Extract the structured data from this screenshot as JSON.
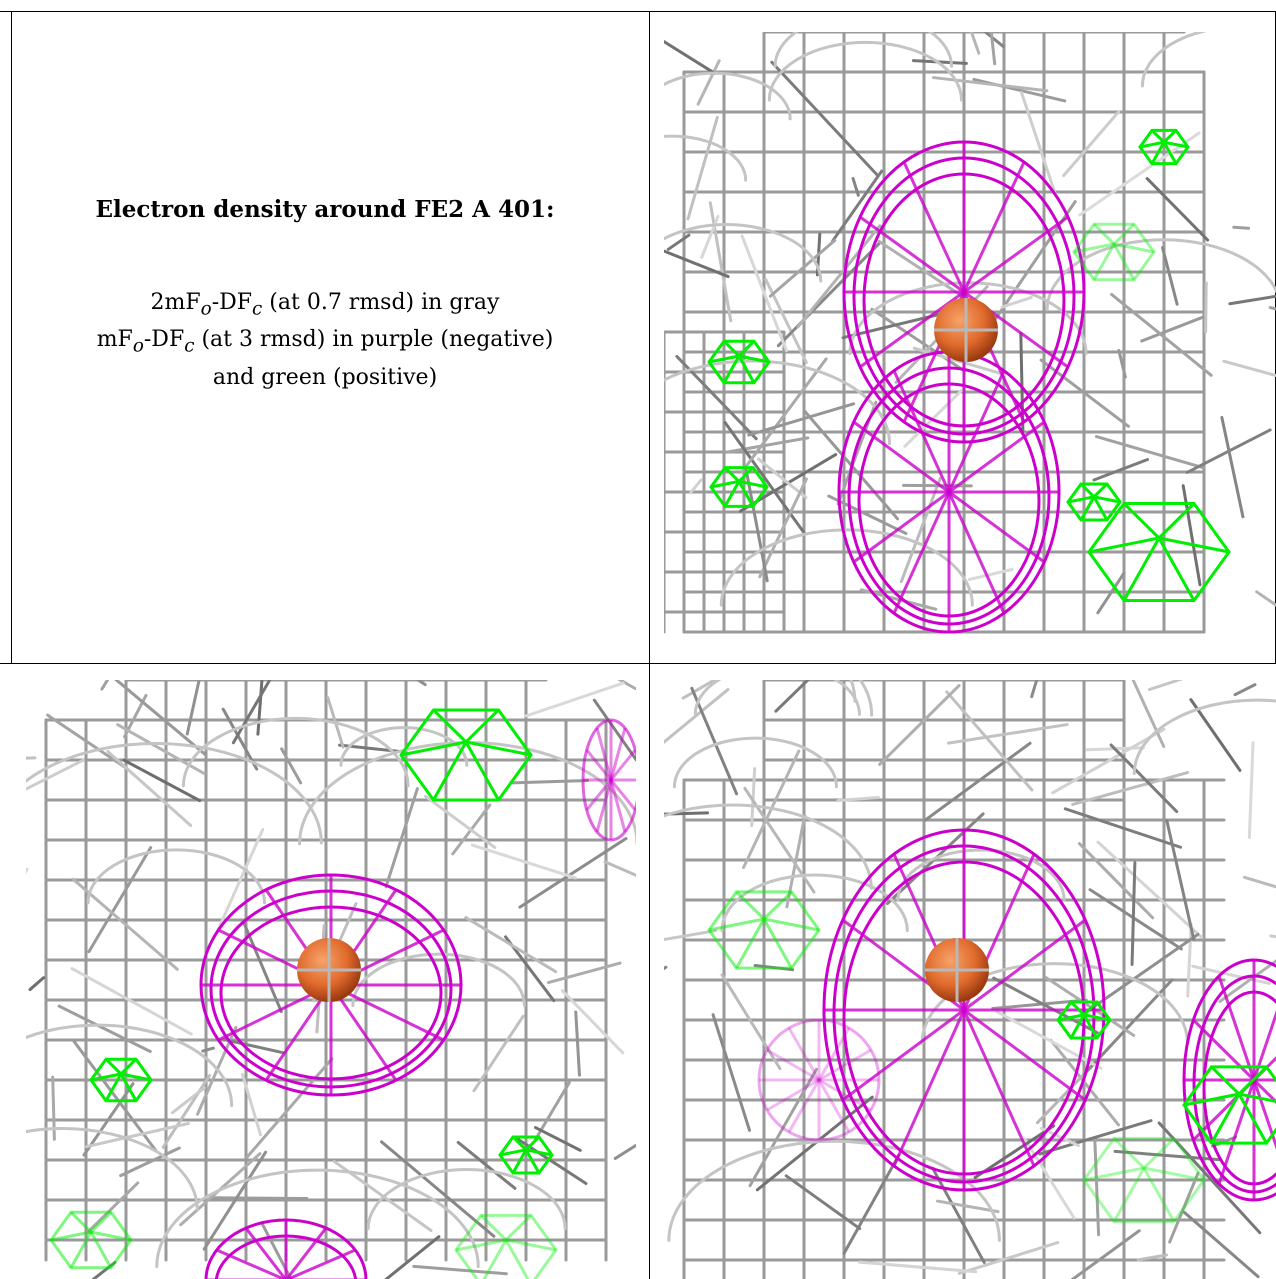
{
  "caption": {
    "title": "Electron density around FE2 A 401:",
    "line1_prefix": "2mF",
    "line1_sub1": "o",
    "line1_mid": "-DF",
    "line1_sub2": "c",
    "line1_suffix": " (at 0.7 rmsd) in gray",
    "line2_prefix": "mF",
    "line2_sub1": "o",
    "line2_mid": "-DF",
    "line2_sub2": "c",
    "line2_suffix": " (at 3 rmsd) in purple (negative)",
    "line3": "and green (positive)"
  },
  "colors": {
    "map_2fofc": "#9a9a9a",
    "map_negative": "#cc00cc",
    "map_positive": "#00ee00",
    "iron_atom": "#e06a2c",
    "border": "#000000"
  },
  "panels": [
    {
      "name": "view-top-right",
      "atom": "FE2 A 401"
    },
    {
      "name": "view-bottom-left",
      "atom": "FE2 A 401"
    },
    {
      "name": "view-bottom-right",
      "atom": "FE2 A 401"
    }
  ]
}
